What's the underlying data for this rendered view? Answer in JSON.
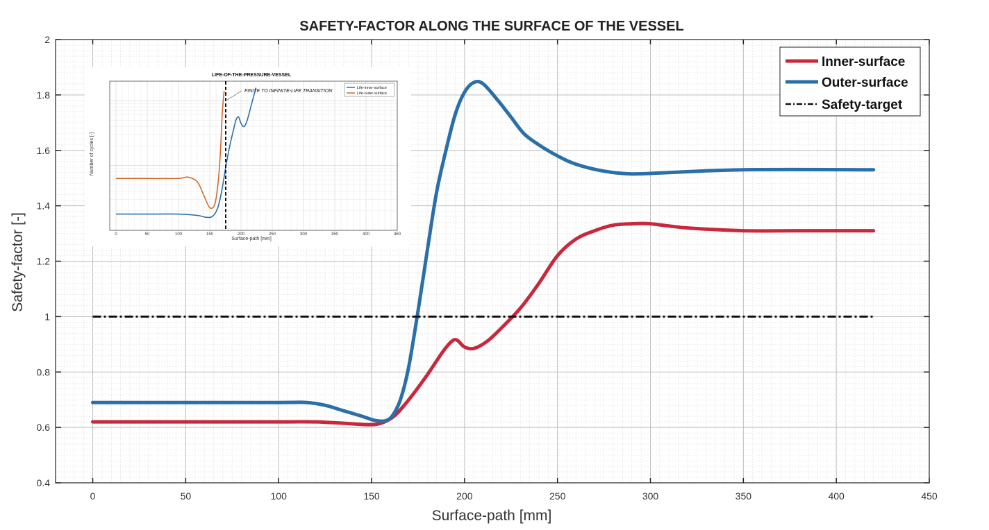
{
  "colors": {
    "inner": "#c8283c",
    "outer": "#2a6fa8",
    "target": "#111111",
    "inset_inner": "#2a6fa8",
    "inset_outer": "#d2692a"
  },
  "chart_data": [
    {
      "type": "line",
      "title": "SAFETY-FACTOR ALONG THE SURFACE OF THE VESSEL",
      "xlabel": "Surface-path [mm]",
      "ylabel": "Safety-factor [-]",
      "xlim": [
        -20,
        450
      ],
      "ylim": [
        0.4,
        2
      ],
      "xticks": [
        "0",
        "50",
        "100",
        "150",
        "200",
        "250",
        "300",
        "350",
        "400",
        "450"
      ],
      "yticks": [
        "0.4",
        "0.6",
        "0.8",
        "1",
        "1.2",
        "1.4",
        "1.6",
        "1.8",
        "2"
      ],
      "grid": true,
      "legend_position": "top-right",
      "series": [
        {
          "name": "Inner-surface",
          "x": [
            0,
            50,
            100,
            120,
            135,
            148,
            155,
            162,
            170,
            180,
            188,
            193,
            196,
            200,
            205,
            212,
            220,
            230,
            240,
            250,
            260,
            270,
            280,
            290,
            300,
            320,
            350,
            380,
            420
          ],
          "y": [
            0.62,
            0.62,
            0.62,
            0.62,
            0.615,
            0.61,
            0.615,
            0.64,
            0.7,
            0.79,
            0.87,
            0.91,
            0.915,
            0.89,
            0.885,
            0.91,
            0.96,
            1.03,
            1.12,
            1.22,
            1.28,
            1.31,
            1.33,
            1.335,
            1.335,
            1.32,
            1.31,
            1.31,
            1.31
          ]
        },
        {
          "name": "Outer-surface",
          "x": [
            0,
            50,
            100,
            115,
            125,
            135,
            145,
            152,
            158,
            162,
            166,
            170,
            175,
            180,
            185,
            190,
            195,
            200,
            205,
            210,
            218,
            225,
            232,
            240,
            250,
            260,
            275,
            290,
            310,
            350,
            420
          ],
          "y": [
            0.69,
            0.69,
            0.69,
            0.69,
            0.68,
            0.66,
            0.64,
            0.625,
            0.625,
            0.65,
            0.71,
            0.82,
            1.02,
            1.24,
            1.45,
            1.6,
            1.73,
            1.81,
            1.845,
            1.84,
            1.78,
            1.72,
            1.66,
            1.62,
            1.58,
            1.55,
            1.525,
            1.515,
            1.52,
            1.53,
            1.53
          ]
        },
        {
          "name": "Safety-target",
          "x": [
            0,
            420
          ],
          "y": [
            1,
            1
          ]
        }
      ]
    },
    {
      "type": "line",
      "title": "LIFE-OF-THE-PRESSURE-VESSEL",
      "xlabel": "Surface-path [mm]",
      "ylabel": "Number of cycles [-]",
      "y_scale": "log",
      "xlim": [
        -10,
        450
      ],
      "xticks": [
        "0",
        "50",
        "100",
        "150",
        "200",
        "250",
        "300",
        "350",
        "400",
        "450"
      ],
      "annotation": "FINITE TO INFINITE-LIFE TRANSITION",
      "legend_position": "top-right",
      "series": [
        {
          "name": "Life-inner-surface",
          "x": [
            0,
            50,
            100,
            130,
            145,
            155,
            163,
            170,
            176,
            182,
            188,
            192,
            196,
            200,
            205,
            210,
            217,
            224
          ],
          "y": [
            2.25,
            2.25,
            2.25,
            2.23,
            2.2,
            2.22,
            2.35,
            2.65,
            3.0,
            3.3,
            3.55,
            3.7,
            3.75,
            3.65,
            3.6,
            3.7,
            3.95,
            4.2
          ]
        },
        {
          "name": "Life-outer-surface",
          "x": [
            0,
            50,
            100,
            115,
            130,
            140,
            150,
            158,
            163,
            167,
            170,
            173
          ],
          "y": [
            2.8,
            2.8,
            2.8,
            2.82,
            2.75,
            2.55,
            2.35,
            2.4,
            2.7,
            3.2,
            3.8,
            4.15
          ]
        }
      ]
    }
  ]
}
